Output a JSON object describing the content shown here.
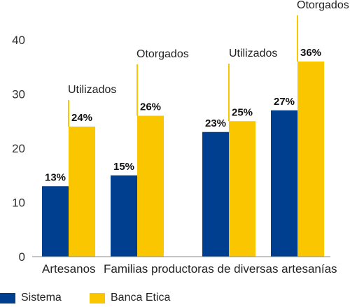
{
  "chart_data": {
    "type": "bar",
    "title": "",
    "xlabel": "",
    "ylabel": "",
    "ylim": [
      0,
      45
    ],
    "yticks": [
      0,
      10,
      20,
      30,
      40
    ],
    "grid": false,
    "legend_position": "bottom-left",
    "categories": [
      "Artesanos",
      "Familias productoras de diversas artesanías"
    ],
    "groups": [
      {
        "category_index": 0,
        "annotation": "Utilizados",
        "values": [
          13,
          24
        ],
        "labels": [
          "13%",
          "24%"
        ]
      },
      {
        "category_index": 1,
        "annotation": "Otorgados",
        "values": [
          15,
          26
        ],
        "labels": [
          "15%",
          "26%"
        ]
      },
      {
        "category_index": 1,
        "annotation": "Utilizados",
        "values": [
          23,
          25
        ],
        "labels": [
          "23%",
          "25%"
        ]
      },
      {
        "category_index": 1,
        "annotation": "Otorgados",
        "values": [
          27,
          36
        ],
        "labels": [
          "27%",
          "36%"
        ]
      }
    ],
    "series": [
      {
        "name": "Sistema",
        "color": "#003F8F"
      },
      {
        "name": "Banca Etica",
        "color": "#F9C600"
      }
    ]
  },
  "legend": {
    "sistema_label": "Sistema",
    "banca_label": "Banca Etica"
  }
}
